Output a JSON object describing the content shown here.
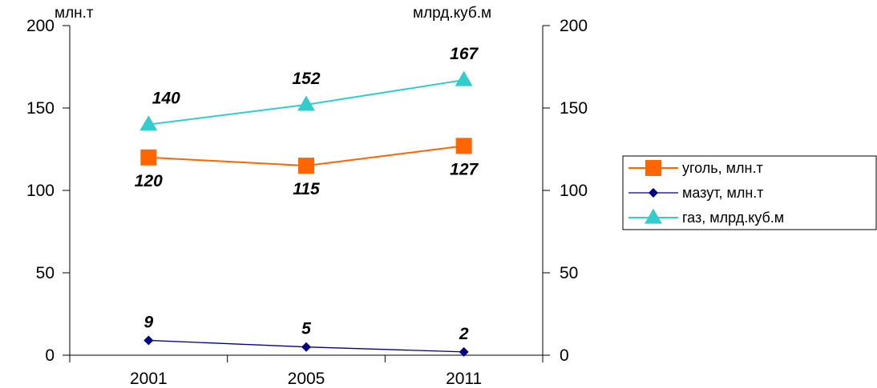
{
  "chart_data": {
    "type": "line",
    "categories": [
      "2001",
      "2005",
      "2011"
    ],
    "left_axis": {
      "unit_label": "млн.т",
      "ticks": [
        "0",
        "50",
        "100",
        "150",
        "200"
      ],
      "ylim": [
        0,
        200
      ]
    },
    "right_axis": {
      "unit_label": "млрд.куб.м",
      "ticks": [
        "0",
        "50",
        "100",
        "150",
        "200"
      ],
      "ylim": [
        0,
        200
      ]
    },
    "series": [
      {
        "name": "уголь, млн.т",
        "values": [
          120,
          115,
          127
        ],
        "labels": [
          "120",
          "115",
          "127"
        ],
        "color": "#ff6600",
        "marker": "square"
      },
      {
        "name": "мазут, млн.т",
        "values": [
          9,
          5,
          2
        ],
        "labels": [
          "9",
          "5",
          "2"
        ],
        "color": "#000080",
        "marker": "diamond"
      },
      {
        "name": "газ, млрд.куб.м",
        "values": [
          140,
          152,
          167
        ],
        "labels": [
          "140",
          "152",
          "167"
        ],
        "color": "#33cccc",
        "marker": "triangle"
      }
    ],
    "grid": false,
    "legend_position": "right"
  }
}
